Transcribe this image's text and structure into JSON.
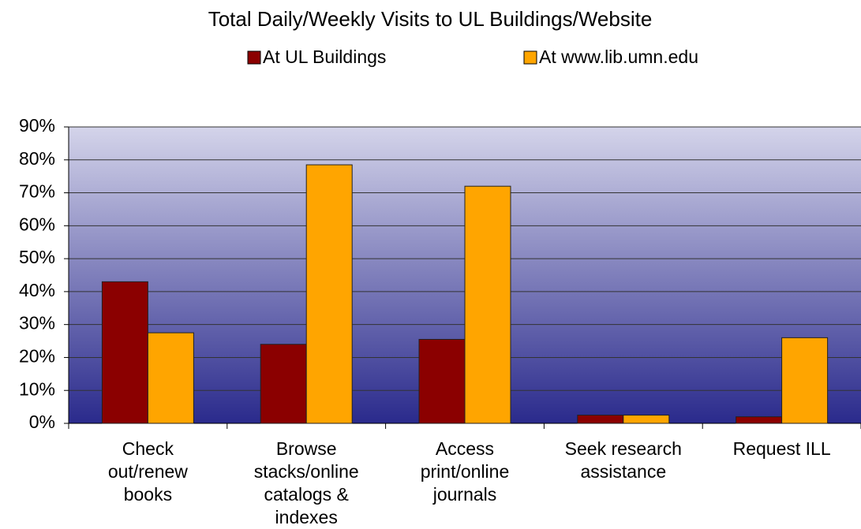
{
  "chart_data": {
    "type": "bar",
    "title": "Total Daily/Weekly Visits to UL Buildings/Website",
    "categories": [
      "Check out/renew books",
      "Browse stacks/online catalogs & indexes",
      "Access print/online journals",
      "Seek research assistance",
      "Request ILL"
    ],
    "series": [
      {
        "name": "At UL Buildings",
        "color": "#8b0000",
        "values": [
          43,
          24,
          25.5,
          2.5,
          2
        ]
      },
      {
        "name": "At www.lib.umn.edu",
        "color": "#ffa500",
        "values": [
          27.5,
          78.5,
          72,
          2.5,
          26
        ]
      }
    ],
    "ylim": [
      0,
      90
    ],
    "yticks": [
      {
        "value": 0,
        "label": "0%"
      },
      {
        "value": 10,
        "label": "10%"
      },
      {
        "value": 20,
        "label": "20%"
      },
      {
        "value": 30,
        "label": "30%"
      },
      {
        "value": 40,
        "label": "40%"
      },
      {
        "value": 50,
        "label": "50%"
      },
      {
        "value": 60,
        "label": "60%"
      },
      {
        "value": 70,
        "label": "70%"
      },
      {
        "value": 80,
        "label": "80%"
      },
      {
        "value": 90,
        "label": "90%"
      }
    ],
    "grid": true,
    "legend": "top"
  }
}
